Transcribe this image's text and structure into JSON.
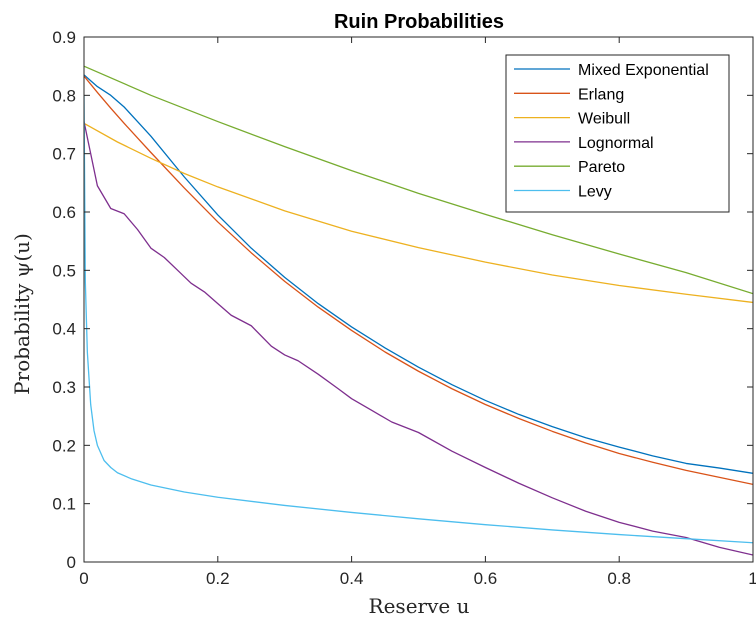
{
  "chart_data": {
    "type": "line",
    "title": "Ruin Probabilities",
    "xlabel": "Reserve u",
    "ylabel": "Probability ψ(u)",
    "xlim": [
      0,
      1
    ],
    "ylim": [
      0,
      0.9
    ],
    "xticks": [
      0,
      0.2,
      0.4,
      0.6,
      0.8,
      1
    ],
    "xtick_labels": [
      "0",
      "0.2",
      "0.4",
      "0.6",
      "0.8",
      "1"
    ],
    "yticks": [
      0,
      0.1,
      0.2,
      0.3,
      0.4,
      0.5,
      0.6,
      0.7,
      0.8,
      0.9
    ],
    "ytick_labels": [
      "0",
      "0.1",
      "0.2",
      "0.3",
      "0.4",
      "0.5",
      "0.6",
      "0.7",
      "0.8",
      "0.9"
    ],
    "grid": false,
    "legend_position": "top-right",
    "series": [
      {
        "name": "Mixed Exponential",
        "color": "#0072BD",
        "x": [
          0,
          0.02,
          0.04,
          0.06,
          0.08,
          0.1,
          0.15,
          0.2,
          0.25,
          0.3,
          0.35,
          0.4,
          0.45,
          0.5,
          0.55,
          0.6,
          0.65,
          0.7,
          0.75,
          0.8,
          0.85,
          0.9,
          0.95,
          1.0
        ],
        "y": [
          0.835,
          0.815,
          0.8,
          0.78,
          0.755,
          0.73,
          0.66,
          0.595,
          0.538,
          0.488,
          0.443,
          0.403,
          0.367,
          0.334,
          0.304,
          0.277,
          0.253,
          0.232,
          0.213,
          0.197,
          0.182,
          0.169,
          0.161,
          0.152
        ]
      },
      {
        "name": "Erlang",
        "color": "#D95319",
        "x": [
          0,
          0.02,
          0.04,
          0.06,
          0.08,
          0.1,
          0.15,
          0.2,
          0.25,
          0.3,
          0.35,
          0.4,
          0.45,
          0.5,
          0.55,
          0.6,
          0.65,
          0.7,
          0.75,
          0.8,
          0.85,
          0.9,
          0.95,
          1.0
        ],
        "y": [
          0.833,
          0.805,
          0.778,
          0.752,
          0.727,
          0.702,
          0.641,
          0.583,
          0.53,
          0.481,
          0.437,
          0.397,
          0.36,
          0.327,
          0.297,
          0.27,
          0.246,
          0.224,
          0.204,
          0.186,
          0.171,
          0.157,
          0.145,
          0.133
        ]
      },
      {
        "name": "Weibull",
        "color": "#EDB120",
        "x": [
          0,
          0.05,
          0.1,
          0.15,
          0.2,
          0.3,
          0.4,
          0.5,
          0.6,
          0.7,
          0.8,
          0.9,
          1.0
        ],
        "y": [
          0.752,
          0.72,
          0.692,
          0.666,
          0.643,
          0.602,
          0.567,
          0.539,
          0.514,
          0.492,
          0.474,
          0.459,
          0.445
        ]
      },
      {
        "name": "Lognormal",
        "color": "#7E2F8E",
        "x": [
          0,
          0.02,
          0.04,
          0.06,
          0.08,
          0.1,
          0.12,
          0.14,
          0.16,
          0.18,
          0.2,
          0.22,
          0.25,
          0.28,
          0.3,
          0.32,
          0.35,
          0.38,
          0.4,
          0.43,
          0.46,
          0.5,
          0.55,
          0.6,
          0.65,
          0.7,
          0.75,
          0.8,
          0.85,
          0.9,
          0.95,
          1.0
        ],
        "y": [
          0.755,
          0.645,
          0.606,
          0.597,
          0.57,
          0.538,
          0.522,
          0.5,
          0.478,
          0.463,
          0.443,
          0.423,
          0.405,
          0.37,
          0.355,
          0.345,
          0.322,
          0.297,
          0.28,
          0.26,
          0.24,
          0.222,
          0.19,
          0.162,
          0.135,
          0.11,
          0.087,
          0.068,
          0.053,
          0.042,
          0.025,
          0.012
        ]
      },
      {
        "name": "Pareto",
        "color": "#77AC30",
        "x": [
          0,
          0.1,
          0.2,
          0.3,
          0.4,
          0.5,
          0.6,
          0.7,
          0.8,
          0.9,
          1.0
        ],
        "y": [
          0.85,
          0.8,
          0.755,
          0.712,
          0.671,
          0.632,
          0.596,
          0.561,
          0.528,
          0.496,
          0.46
        ]
      },
      {
        "name": "Levy",
        "color": "#4DBEEE",
        "x": [
          0,
          0.002,
          0.005,
          0.01,
          0.015,
          0.02,
          0.03,
          0.04,
          0.05,
          0.07,
          0.1,
          0.15,
          0.2,
          0.3,
          0.4,
          0.5,
          0.6,
          0.7,
          0.8,
          0.9,
          1.0
        ],
        "y": [
          0.8,
          0.48,
          0.36,
          0.27,
          0.225,
          0.2,
          0.174,
          0.162,
          0.153,
          0.143,
          0.132,
          0.12,
          0.111,
          0.097,
          0.085,
          0.074,
          0.064,
          0.055,
          0.047,
          0.04,
          0.033
        ]
      }
    ]
  }
}
